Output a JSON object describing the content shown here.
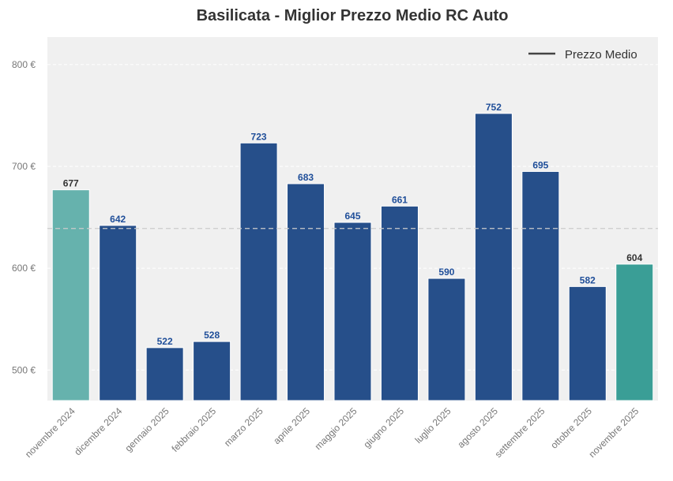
{
  "chart_data": {
    "type": "bar",
    "title": "Basilicata - Miglior Prezzo Medio RC Auto",
    "xlabel": "",
    "ylabel": "",
    "categories": [
      "novembre 2024",
      "dicembre 2024",
      "gennaio 2025",
      "febbraio 2025",
      "marzo 2025",
      "aprile 2025",
      "maggio 2025",
      "giugno 2025",
      "luglio 2025",
      "agosto 2025",
      "settembre 2025",
      "ottobre 2025",
      "novembre 2025"
    ],
    "values": [
      677,
      642,
      522,
      528,
      723,
      683,
      645,
      661,
      590,
      752,
      695,
      582,
      604
    ],
    "bar_colors": [
      "#66b2ad",
      "#264f8a",
      "#264f8a",
      "#264f8a",
      "#264f8a",
      "#264f8a",
      "#264f8a",
      "#264f8a",
      "#264f8a",
      "#264f8a",
      "#264f8a",
      "#264f8a",
      "#3a9e96"
    ],
    "label_colors": [
      "#333333",
      "#1f4e99",
      "#1f4e99",
      "#1f4e99",
      "#1f4e99",
      "#1f4e99",
      "#1f4e99",
      "#1f4e99",
      "#1f4e99",
      "#1f4e99",
      "#1f4e99",
      "#1f4e99",
      "#333333"
    ],
    "ylim": [
      470,
      827
    ],
    "yticks": [
      500,
      600,
      700,
      800
    ],
    "ytick_labels": [
      "500 €",
      "600 €",
      "700 €",
      "800 €"
    ],
    "mean_value": 639,
    "legend": {
      "entries": [
        "Prezzo Medio"
      ],
      "placement": "top-right"
    },
    "grid": true,
    "background": "#f0f0f0"
  }
}
